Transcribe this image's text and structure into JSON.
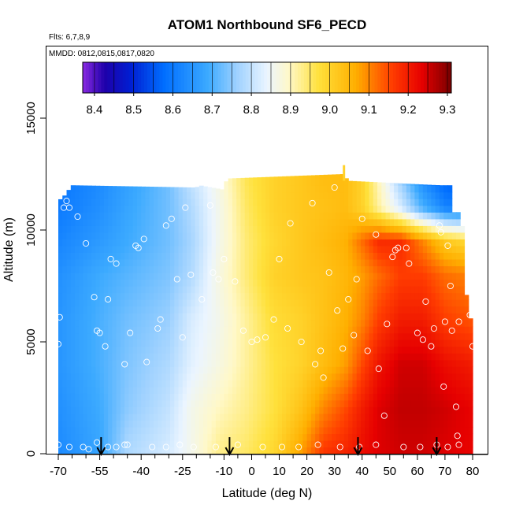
{
  "chart_data": {
    "type": "heatmap",
    "title": "ATOM1 Northbound SF6_PECD",
    "flights_note": "Flts: 6,7,8,9",
    "dates_note": "MMDD: 0812,0815,0817,0820",
    "xlabel": "Latitude (deg N)",
    "ylabel": "Altitude (m)",
    "xlim": [
      -70,
      80
    ],
    "ylim": [
      0,
      17500
    ],
    "x_ticks": [
      -70,
      -55,
      -40,
      -25,
      -10,
      0,
      10,
      20,
      30,
      40,
      50,
      60,
      70,
      80
    ],
    "x_tick_labels": [
      "-70",
      "-55",
      "-40",
      "-25",
      "-10",
      "0",
      "10",
      "20",
      "30",
      "40",
      "50",
      "60",
      "70",
      "80"
    ],
    "y_ticks": [
      0,
      5000,
      10000,
      15000
    ],
    "y_tick_labels": [
      "0",
      "5000",
      "10000",
      "15000"
    ],
    "colorbar": {
      "min": 8.37,
      "max": 9.31,
      "ticks": [
        8.4,
        8.5,
        8.6,
        8.7,
        8.8,
        8.9,
        9.0,
        9.1,
        9.2,
        9.3
      ],
      "tick_labels": [
        "8.4",
        "8.5",
        "8.6",
        "8.7",
        "8.8",
        "8.9",
        "9.0",
        "9.1",
        "9.2",
        "9.3"
      ]
    },
    "flight_turn_latitudes": [
      -54.5,
      -8,
      38.5,
      67
    ],
    "coverage": [
      {
        "lat": -70,
        "top": 11300
      },
      {
        "lat": -68,
        "top": 11500
      },
      {
        "lat": -65,
        "top": 12000
      },
      {
        "lat": -20,
        "top": 11900
      },
      {
        "lat": -19,
        "top": 12000
      },
      {
        "lat": -10,
        "top": 11800
      },
      {
        "lat": -9,
        "top": 12300
      },
      {
        "lat": 33,
        "top": 12500
      },
      {
        "lat": 35,
        "top": 12200
      },
      {
        "lat": 68,
        "top": 12000
      },
      {
        "lat": 72,
        "top": 12000
      },
      {
        "lat": 73,
        "top": 10800
      },
      {
        "lat": 76,
        "top": 10800
      },
      {
        "lat": 77,
        "top": 8300
      },
      {
        "lat": 78,
        "top": 6700
      },
      {
        "lat": 79,
        "top": 6400
      },
      {
        "lat": 80,
        "top": 5000
      },
      {
        "lat": 80,
        "top": 0
      }
    ],
    "field_anchors_lat": [
      -70,
      -55,
      -45,
      -30,
      -22,
      -12,
      -2,
      8,
      18,
      26,
      34,
      40,
      46,
      54,
      62,
      70,
      80
    ],
    "field_anchors_alt": [
      0,
      2000,
      4000,
      6000,
      8000,
      9500,
      11000,
      12500
    ],
    "field_values": [
      [
        8.63,
        8.68,
        8.78,
        8.82,
        8.86,
        8.93,
        8.95,
        8.99,
        9.08,
        9.17,
        9.19,
        9.22,
        9.24,
        9.25,
        9.25,
        9.24,
        9.23
      ],
      [
        8.64,
        8.69,
        8.75,
        8.8,
        8.86,
        8.9,
        8.93,
        8.97,
        9.03,
        9.1,
        9.15,
        9.2,
        9.24,
        9.26,
        9.26,
        9.25,
        9.23
      ],
      [
        8.65,
        8.7,
        8.74,
        8.78,
        8.83,
        8.87,
        8.92,
        8.97,
        9.0,
        9.04,
        9.08,
        9.15,
        9.21,
        9.25,
        9.25,
        9.22,
        9.2
      ],
      [
        8.65,
        8.7,
        8.73,
        8.76,
        8.82,
        8.86,
        8.92,
        8.98,
        9.0,
        9.03,
        9.06,
        9.1,
        9.16,
        9.2,
        9.2,
        9.16,
        9.14
      ],
      [
        8.64,
        8.69,
        8.71,
        8.74,
        8.78,
        8.87,
        8.94,
        9.0,
        9.02,
        9.03,
        9.05,
        9.08,
        9.12,
        9.16,
        9.16,
        9.12,
        9.1
      ],
      [
        8.62,
        8.66,
        8.69,
        8.73,
        8.77,
        8.86,
        8.94,
        8.99,
        9.02,
        9.04,
        9.06,
        9.12,
        9.18,
        9.18,
        9.1,
        9.02,
        8.98
      ],
      [
        8.6,
        8.64,
        8.68,
        8.73,
        8.78,
        8.86,
        8.95,
        9.0,
        9.02,
        9.03,
        9.04,
        9.0,
        8.92,
        8.82,
        8.7,
        8.62,
        8.6
      ],
      [
        8.59,
        8.63,
        8.67,
        8.73,
        8.8,
        8.87,
        8.96,
        9.0,
        9.02,
        9.04,
        9.04,
        9.0,
        8.9,
        8.75,
        8.62,
        8.55,
        8.52
      ]
    ],
    "observations": [
      [
        -70,
        4900
      ],
      [
        -69.5,
        6100
      ],
      [
        -68,
        11000
      ],
      [
        -67,
        11300
      ],
      [
        -66,
        11000
      ],
      [
        -63,
        10600
      ],
      [
        -60,
        9400
      ],
      [
        -57,
        7000
      ],
      [
        -56,
        5500
      ],
      [
        -55,
        5400
      ],
      [
        -53,
        4800
      ],
      [
        -52,
        6900
      ],
      [
        -51,
        8700
      ],
      [
        -49,
        8500
      ],
      [
        -46,
        4000
      ],
      [
        -46,
        400
      ],
      [
        -44,
        5400
      ],
      [
        -42,
        9300
      ],
      [
        -41,
        9200
      ],
      [
        -39,
        9600
      ],
      [
        -38,
        4100
      ],
      [
        -34,
        5600
      ],
      [
        -33,
        6000
      ],
      [
        -31,
        10200
      ],
      [
        -29,
        10500
      ],
      [
        -27,
        7800
      ],
      [
        -25,
        5200
      ],
      [
        -24,
        11000
      ],
      [
        -22,
        8000
      ],
      [
        -18,
        6900
      ],
      [
        -15,
        11100
      ],
      [
        -14,
        8100
      ],
      [
        -12,
        7800
      ],
      [
        -10,
        8700
      ],
      [
        -6,
        7700
      ],
      [
        -3,
        5500
      ],
      [
        0,
        5000
      ],
      [
        2,
        5100
      ],
      [
        5,
        5200
      ],
      [
        8,
        6000
      ],
      [
        10,
        8700
      ],
      [
        13,
        5600
      ],
      [
        14,
        10300
      ],
      [
        18,
        5000
      ],
      [
        22,
        11200
      ],
      [
        23,
        4000
      ],
      [
        25,
        4600
      ],
      [
        26,
        3400
      ],
      [
        28,
        8100
      ],
      [
        30,
        11900
      ],
      [
        31,
        6400
      ],
      [
        33,
        4700
      ],
      [
        35,
        6900
      ],
      [
        37,
        5300
      ],
      [
        38,
        7800
      ],
      [
        40,
        10500
      ],
      [
        42,
        4600
      ],
      [
        45,
        9800
      ],
      [
        46,
        3800
      ],
      [
        48,
        1700
      ],
      [
        49,
        5800
      ],
      [
        51,
        8800
      ],
      [
        52,
        9100
      ],
      [
        53,
        9200
      ],
      [
        56,
        9200
      ],
      [
        57,
        8500
      ],
      [
        60,
        5400
      ],
      [
        62,
        5100
      ],
      [
        63,
        6800
      ],
      [
        65,
        4800
      ],
      [
        66,
        5600
      ],
      [
        68,
        10200
      ],
      [
        68.5,
        9900
      ],
      [
        69.5,
        3000
      ],
      [
        70,
        5900
      ],
      [
        71,
        9300
      ],
      [
        72,
        7500
      ],
      [
        72.5,
        5500
      ],
      [
        74,
        2100
      ],
      [
        74.5,
        800
      ],
      [
        75,
        5900
      ],
      [
        76,
        11800
      ],
      [
        77,
        10800
      ],
      [
        79,
        6200
      ],
      [
        80,
        4800
      ],
      [
        -70,
        400
      ],
      [
        -66,
        300
      ],
      [
        -61,
        300
      ],
      [
        -59,
        200
      ],
      [
        -56,
        500
      ],
      [
        -52,
        300
      ],
      [
        -49,
        300
      ],
      [
        -45,
        400
      ],
      [
        -36,
        300
      ],
      [
        -31,
        300
      ],
      [
        -26,
        400
      ],
      [
        -21,
        300
      ],
      [
        -13,
        300
      ],
      [
        -5,
        400
      ],
      [
        4,
        300
      ],
      [
        11,
        300
      ],
      [
        17,
        300
      ],
      [
        24,
        400
      ],
      [
        32,
        300
      ],
      [
        39,
        300
      ],
      [
        45,
        400
      ],
      [
        55,
        300
      ],
      [
        61,
        300
      ],
      [
        67,
        400
      ],
      [
        71,
        300
      ],
      [
        75,
        400
      ]
    ]
  }
}
